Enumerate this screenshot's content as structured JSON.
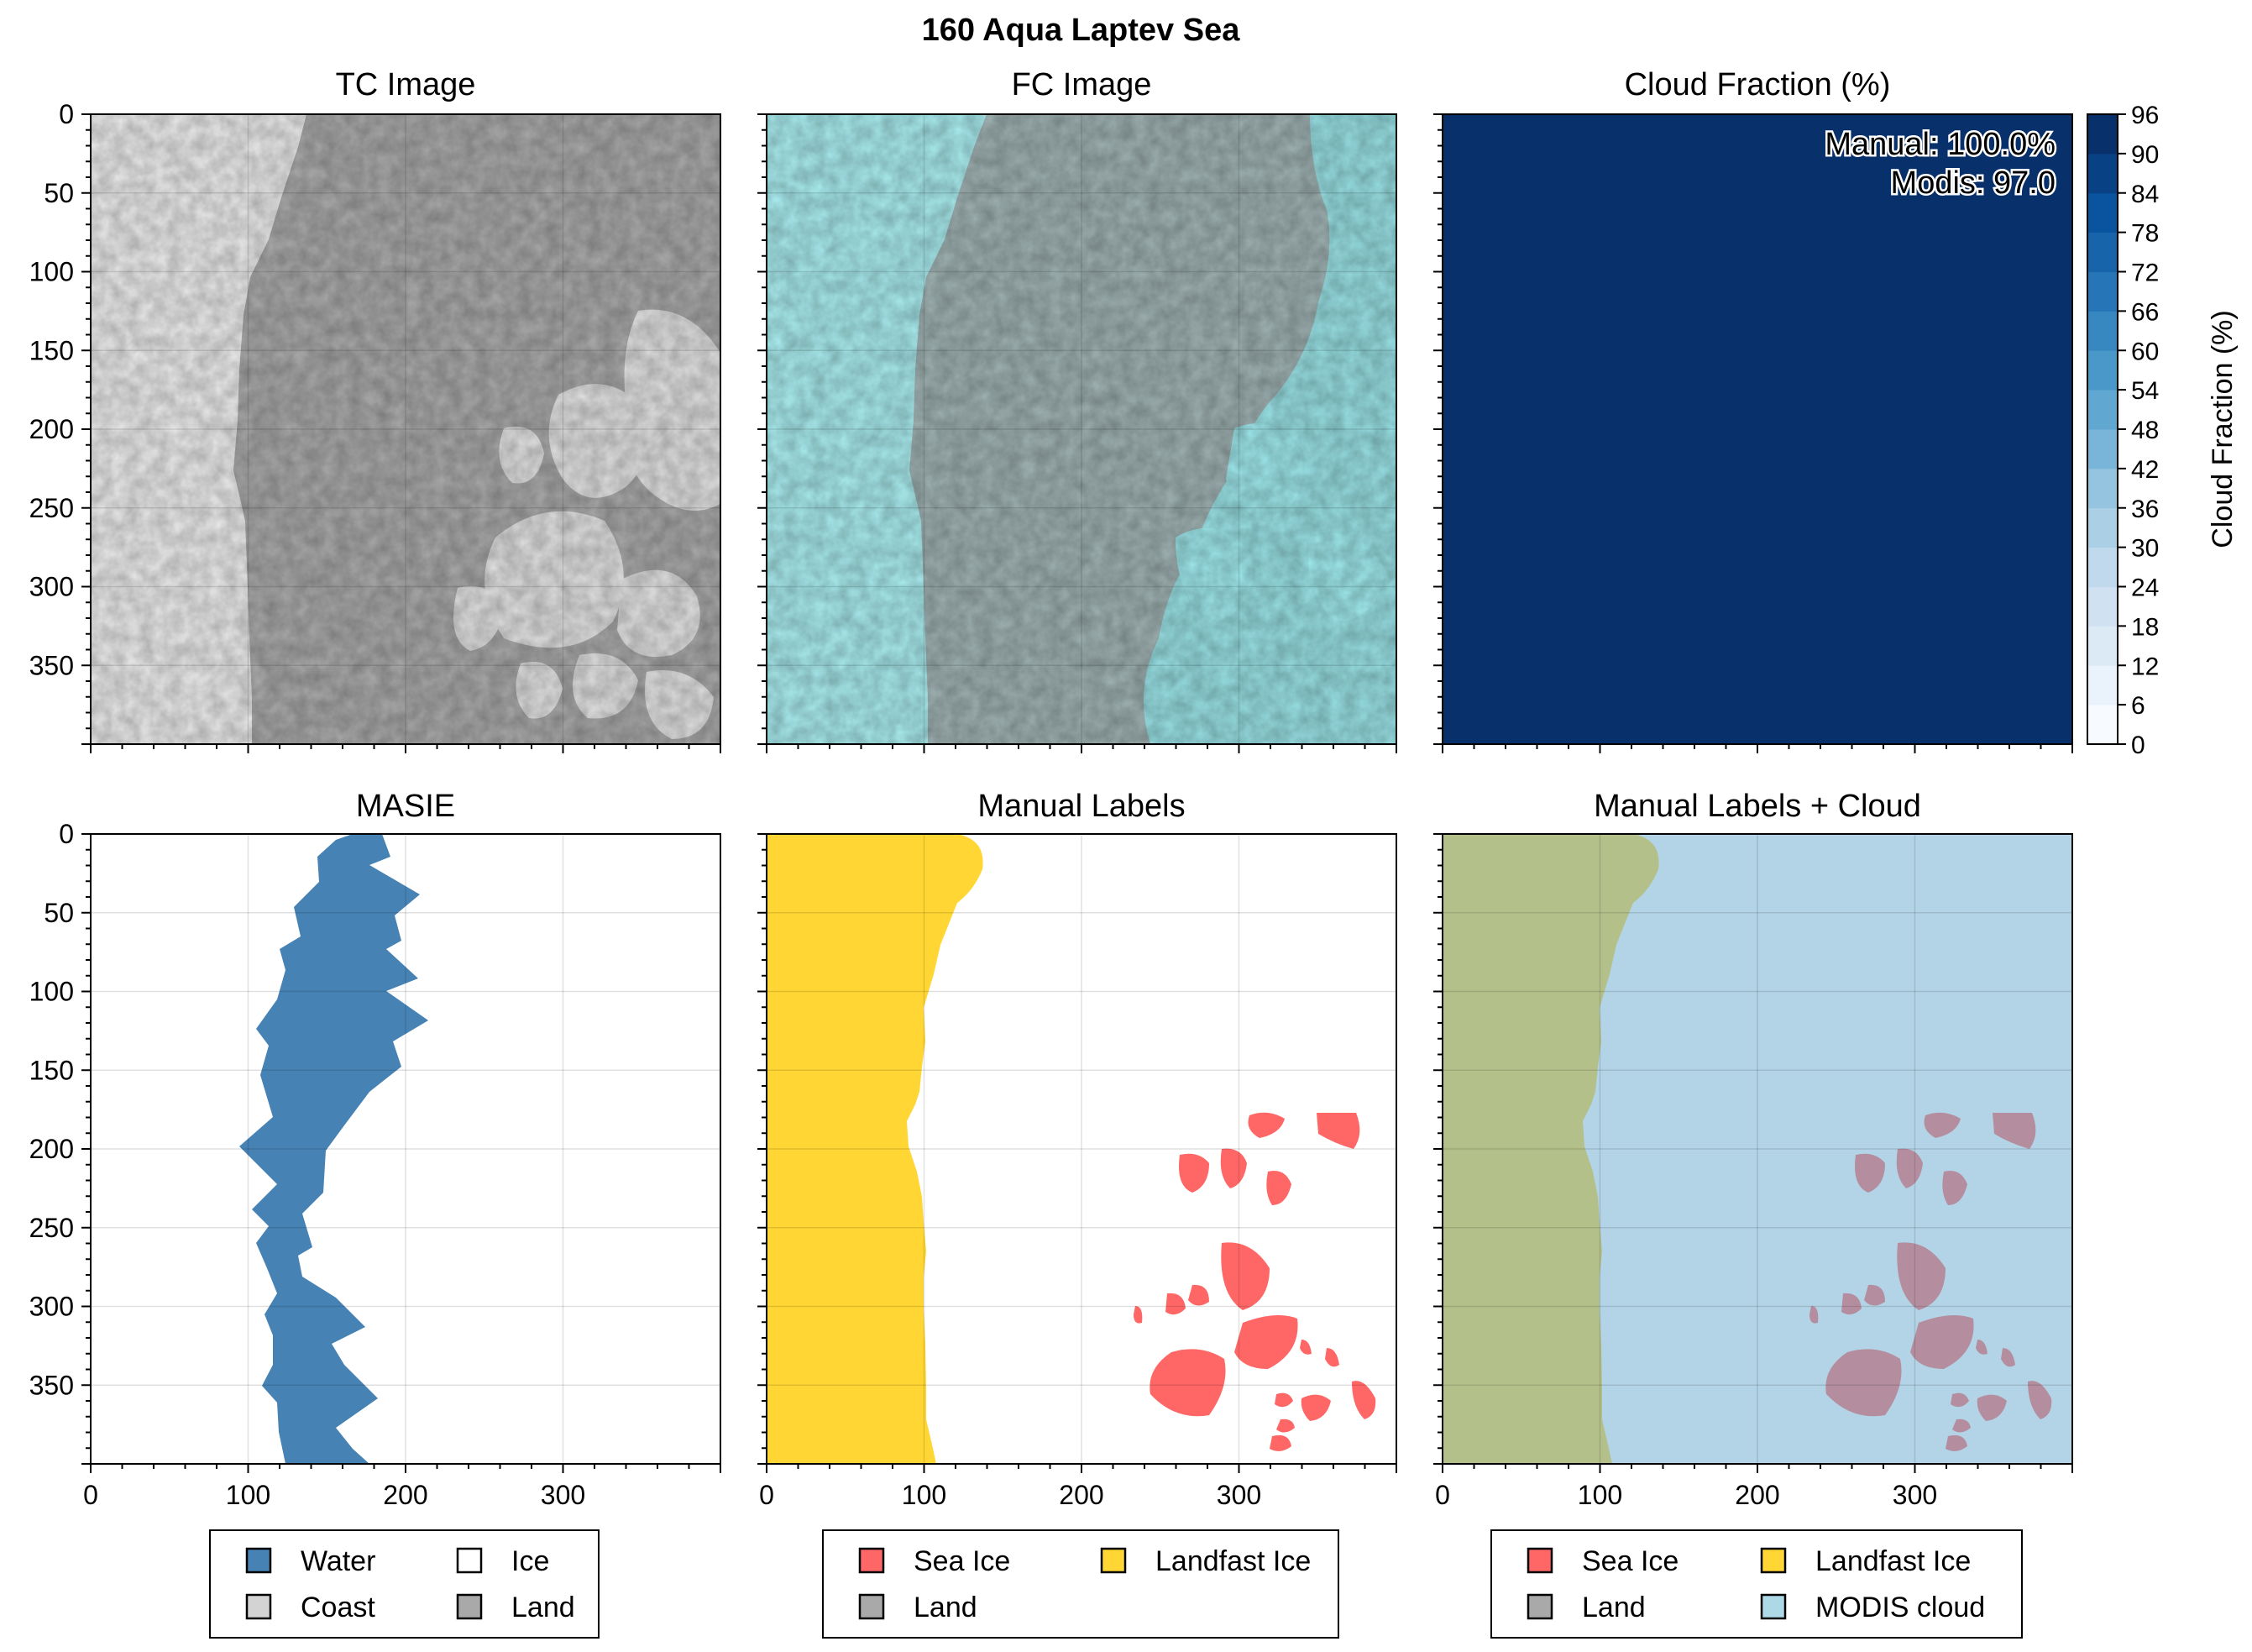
{
  "figure": {
    "title": "160 Aqua Laptev Sea"
  },
  "panels": {
    "tc": {
      "title": "TC Image"
    },
    "fc": {
      "title": "FC Image"
    },
    "cloud": {
      "title": "Cloud Fraction (%)",
      "annotation_manual": "Manual: 100.0%",
      "annotation_modis": "Modis: 97.0",
      "colorbar_label": "Cloud Fraction (%)",
      "colorbar_ticks": [
        "0",
        "6",
        "12",
        "18",
        "24",
        "30",
        "36",
        "42",
        "48",
        "54",
        "60",
        "66",
        "72",
        "78",
        "84",
        "90",
        "96"
      ],
      "fill_color": "#08306b"
    },
    "masie": {
      "title": "MASIE",
      "legend": [
        {
          "label": "Water",
          "color": "#4682b4"
        },
        {
          "label": "Ice",
          "color": "#ffffff"
        },
        {
          "label": "Coast",
          "color": "#d3d3d3"
        },
        {
          "label": "Land",
          "color": "#a9a9a9"
        }
      ]
    },
    "manual": {
      "title": "Manual Labels",
      "legend": [
        {
          "label": "Sea Ice",
          "color": "#ff6666"
        },
        {
          "label": "Landfast Ice",
          "color": "#ffd633"
        },
        {
          "label": "Land",
          "color": "#a9a9a9"
        }
      ]
    },
    "manual_cloud": {
      "title": "Manual Labels + Cloud",
      "legend": [
        {
          "label": "Sea Ice",
          "color": "#ff6666"
        },
        {
          "label": "Landfast Ice",
          "color": "#ffd633"
        },
        {
          "label": "Land",
          "color": "#a9a9a9"
        },
        {
          "label": "MODIS cloud",
          "color": "#add8e6"
        }
      ]
    }
  },
  "axes": {
    "x_ticks": [
      "0",
      "100",
      "200",
      "300"
    ],
    "y_ticks": [
      "0",
      "50",
      "100",
      "150",
      "200",
      "250",
      "300",
      "350"
    ]
  },
  "chart_data": [
    {
      "type": "heatmap",
      "title": "TC Image",
      "xlim": [
        0,
        400
      ],
      "ylim": [
        400,
        0
      ],
      "grid": true
    },
    {
      "type": "heatmap",
      "title": "FC Image",
      "xlim": [
        0,
        400
      ],
      "ylim": [
        400,
        0
      ],
      "grid": true
    },
    {
      "type": "heatmap",
      "title": "Cloud Fraction (%)",
      "xlim": [
        0,
        400
      ],
      "ylim": [
        400,
        0
      ],
      "values": [
        [
          97
        ]
      ],
      "colorbar": {
        "label": "Cloud Fraction (%)",
        "range": [
          0,
          96
        ],
        "step": 6
      }
    },
    {
      "type": "heatmap",
      "title": "MASIE",
      "xlim": [
        0,
        400
      ],
      "ylim": [
        400,
        0
      ],
      "grid": true,
      "legend_position": "bottom"
    },
    {
      "type": "heatmap",
      "title": "Manual Labels",
      "xlim": [
        0,
        400
      ],
      "ylim": [
        400,
        0
      ],
      "grid": true,
      "legend_position": "bottom"
    },
    {
      "type": "heatmap",
      "title": "Manual Labels + Cloud",
      "xlim": [
        0,
        400
      ],
      "ylim": [
        400,
        0
      ],
      "grid": true,
      "legend_position": "bottom"
    }
  ]
}
